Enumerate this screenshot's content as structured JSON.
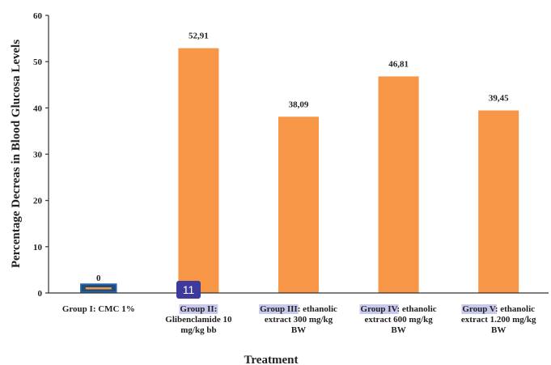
{
  "chart_data": {
    "type": "bar",
    "ylabel": "Percentage Decreas in Blood Glucosa Levels",
    "xlabel": "Treatment",
    "ylim": [
      0,
      60
    ],
    "yticks": [
      0,
      10,
      20,
      30,
      40,
      50,
      60
    ],
    "grid": false,
    "bar_color": "#f79646",
    "categories": [
      {
        "label_lines": [
          {
            "hl": "",
            "rest": "Group I: CMC 1%"
          }
        ]
      },
      {
        "label_lines": [
          {
            "hl": "Group II:",
            "rest": ""
          },
          {
            "hl": "",
            "rest": "Glibenclamide 10"
          },
          {
            "hl": "",
            "rest": "mg/kg bb"
          }
        ]
      },
      {
        "label_lines": [
          {
            "hl": "Group III",
            "rest": ": ethanolic"
          },
          {
            "hl": "",
            "rest": "extract 300 mg/kg"
          },
          {
            "hl": "",
            "rest": "BW"
          }
        ]
      },
      {
        "label_lines": [
          {
            "hl": "Group IV",
            "rest": ":  ethanolic"
          },
          {
            "hl": "",
            "rest": "extract 600 mg/kg"
          },
          {
            "hl": "",
            "rest": "BW"
          }
        ]
      },
      {
        "label_lines": [
          {
            "hl": "Group V",
            "rest": ": ethanolic"
          },
          {
            "hl": "",
            "rest": "extract 1.200 mg/kg"
          },
          {
            "hl": "",
            "rest": "BW"
          }
        ]
      }
    ],
    "values": [
      0,
      52.91,
      38.09,
      46.81,
      39.45
    ],
    "value_labels": [
      "0",
      "52,91",
      "38,09",
      "46,81",
      "39,45"
    ],
    "selected_index": 0
  },
  "marker": {
    "label": "11"
  }
}
